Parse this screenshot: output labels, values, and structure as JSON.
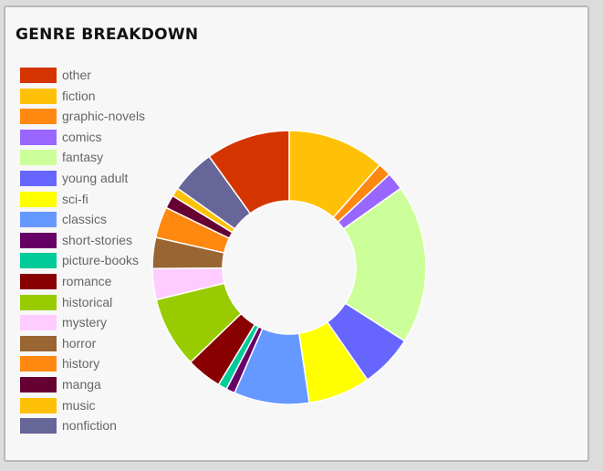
{
  "widget": {
    "title": "GENRE BREAKDOWN"
  },
  "chart_data": {
    "type": "pie",
    "donut": true,
    "legend_position": "left",
    "slices": [
      {
        "label": "fiction",
        "value": 11,
        "color": "#ffc107"
      },
      {
        "label": "graphic-novels",
        "value": 1.5,
        "color": "#ff8811"
      },
      {
        "label": "comics",
        "value": 2,
        "color": "#9966ff"
      },
      {
        "label": "fantasy",
        "value": 18,
        "color": "#ccff99"
      },
      {
        "label": "young adult",
        "value": 6,
        "color": "#6666ff"
      },
      {
        "label": "sci-fi",
        "value": 7,
        "color": "#ffff00"
      },
      {
        "label": "classics",
        "value": 8.5,
        "color": "#6699ff"
      },
      {
        "label": "short-stories",
        "value": 1,
        "color": "#660066"
      },
      {
        "label": "picture-books",
        "value": 1,
        "color": "#00cc99"
      },
      {
        "label": "romance",
        "value": 4,
        "color": "#880000"
      },
      {
        "label": "historical",
        "value": 8,
        "color": "#99cc00"
      },
      {
        "label": "mystery",
        "value": 3.5,
        "color": "#ffccff"
      },
      {
        "label": "horror",
        "value": 3.5,
        "color": "#996633"
      },
      {
        "label": "history",
        "value": 3.5,
        "color": "#ff8811"
      },
      {
        "label": "manga",
        "value": 1.5,
        "color": "#660033"
      },
      {
        "label": "music",
        "value": 1,
        "color": "#ffc107"
      },
      {
        "label": "nonfiction",
        "value": 5,
        "color": "#666699"
      },
      {
        "label": "other",
        "value": 9.5,
        "color": "#d43500"
      }
    ]
  },
  "legend": [
    {
      "label": "other",
      "color": "#d43500"
    },
    {
      "label": "fiction",
      "color": "#ffc107"
    },
    {
      "label": "graphic-novels",
      "color": "#ff8811"
    },
    {
      "label": "comics",
      "color": "#9966ff"
    },
    {
      "label": "fantasy",
      "color": "#ccff99"
    },
    {
      "label": "young adult",
      "color": "#6666ff"
    },
    {
      "label": "sci-fi",
      "color": "#ffff00"
    },
    {
      "label": "classics",
      "color": "#6699ff"
    },
    {
      "label": "short-stories",
      "color": "#660066"
    },
    {
      "label": "picture-books",
      "color": "#00cc99"
    },
    {
      "label": "romance",
      "color": "#880000"
    },
    {
      "label": "historical",
      "color": "#99cc00"
    },
    {
      "label": "mystery",
      "color": "#ffccff"
    },
    {
      "label": "horror",
      "color": "#996633"
    },
    {
      "label": "history",
      "color": "#ff8811"
    },
    {
      "label": "manga",
      "color": "#660033"
    },
    {
      "label": "music",
      "color": "#ffc107"
    },
    {
      "label": "nonfiction",
      "color": "#666699"
    }
  ]
}
